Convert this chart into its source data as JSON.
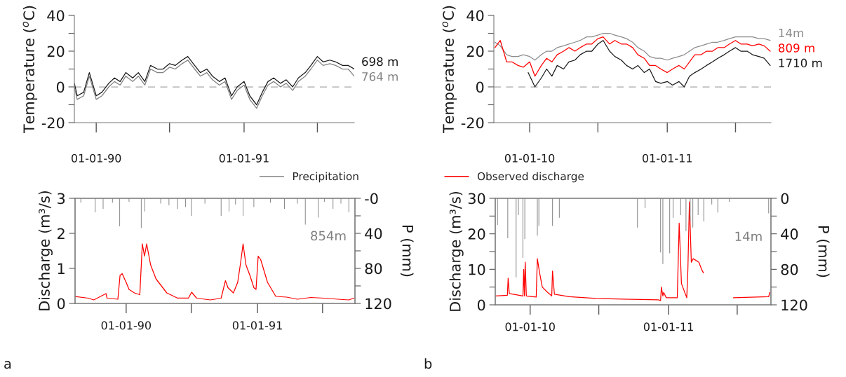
{
  "chart_data": [
    {
      "type": "line",
      "ylabel": "Temperature ($^{o}$C)",
      "legend": false,
      "grid": false,
      "xlim": [
        "1989-11-08",
        "1991-09-30"
      ],
      "xticks": [
        {
          "value": "1990-01-01",
          "label": "01-01-90"
        },
        {
          "value": "1990-07-01",
          "label": null
        },
        {
          "value": "1991-01-01",
          "label": "01-01-91"
        },
        {
          "value": "1991-07-01",
          "label": null
        }
      ],
      "ylim": [
        -20,
        40
      ],
      "yticks": [
        -20,
        {
          "value": -10,
          "label": null
        },
        0,
        {
          "value": 10,
          "label": null
        },
        20,
        {
          "value": 30,
          "label": null
        },
        40
      ],
      "ref_lines": [
        {
          "axis": "y",
          "value": 0,
          "color": "#a6a6a6",
          "line_style": "dashed"
        }
      ],
      "series": [
        {
          "name": "698 m",
          "color": "#1a1a1a",
          "x": [
            "1989-11-08",
            "1989-11-15",
            "1989-12-01",
            "1989-12-15",
            "1990-01-01",
            "1990-01-15",
            "1990-02-01",
            "1990-02-15",
            "1990-03-01",
            "1990-03-15",
            "1990-04-01",
            "1990-04-15",
            "1990-05-01",
            "1990-05-15",
            "1990-06-01",
            "1990-06-15",
            "1990-07-01",
            "1990-07-15",
            "1990-08-01",
            "1990-08-15",
            "1990-09-01",
            "1990-09-15",
            "1990-10-01",
            "1990-10-15",
            "1990-11-01",
            "1990-11-15",
            "1990-12-01",
            "1990-12-15",
            "1991-01-01",
            "1991-01-15",
            "1991-02-01",
            "1991-02-15",
            "1991-03-01",
            "1991-03-15",
            "1991-04-01",
            "1991-04-15",
            "1991-05-01",
            "1991-05-15",
            "1991-06-01",
            "1991-06-15",
            "1991-07-01",
            "1991-07-15",
            "1991-08-01",
            "1991-08-15",
            "1991-09-01",
            "1991-09-15",
            "1991-09-30"
          ],
          "values": [
            2,
            -5,
            -3,
            8,
            -5,
            -3,
            2,
            5,
            3,
            8,
            5,
            8,
            3,
            12,
            10,
            10,
            13,
            12,
            15,
            17,
            12,
            8,
            10,
            6,
            3,
            5,
            -5,
            0,
            3,
            -5,
            -10,
            -3,
            3,
            5,
            2,
            4,
            0,
            5,
            8,
            12,
            17,
            14,
            15,
            14,
            12,
            12,
            10
          ]
        },
        {
          "name": "764 m",
          "color": "#808080",
          "x": [
            "1989-11-08",
            "1989-11-15",
            "1989-12-01",
            "1989-12-15",
            "1990-01-01",
            "1990-01-15",
            "1990-02-01",
            "1990-02-15",
            "1990-03-01",
            "1990-03-15",
            "1990-04-01",
            "1990-04-15",
            "1990-05-01",
            "1990-05-15",
            "1990-06-01",
            "1990-06-15",
            "1990-07-01",
            "1990-07-15",
            "1990-08-01",
            "1990-08-15",
            "1990-09-01",
            "1990-09-15",
            "1990-10-01",
            "1990-10-15",
            "1990-11-01",
            "1990-11-15",
            "1990-12-01",
            "1990-12-15",
            "1991-01-01",
            "1991-01-15",
            "1991-02-01",
            "1991-02-15",
            "1991-03-01",
            "1991-03-15",
            "1991-04-01",
            "1991-04-15",
            "1991-05-01",
            "1991-05-15",
            "1991-06-01",
            "1991-06-15",
            "1991-07-01",
            "1991-07-15",
            "1991-08-01",
            "1991-08-15",
            "1991-09-01",
            "1991-09-15",
            "1991-09-30"
          ],
          "values": [
            0,
            -7,
            -5,
            6,
            -7,
            -5,
            0,
            3,
            1,
            6,
            3,
            6,
            1,
            10,
            8,
            8,
            11,
            10,
            13,
            15,
            10,
            6,
            8,
            4,
            1,
            3,
            -7,
            -2,
            1,
            -7,
            -12,
            -5,
            1,
            3,
            0,
            2,
            -2,
            3,
            6,
            10,
            15,
            12,
            13,
            12,
            10,
            10,
            6
          ]
        }
      ]
    },
    {
      "type": "line",
      "ylabel": "Temperature ($^{o}$C)",
      "legend": false,
      "grid": false,
      "xlim": [
        "2009-09-28",
        "2011-10-03"
      ],
      "xticks": [
        {
          "value": "2010-01-01",
          "label": "01-01-10"
        },
        {
          "value": "2010-07-01",
          "label": null
        },
        {
          "value": "2011-01-01",
          "label": "01-01-11"
        },
        {
          "value": "2011-07-01",
          "label": null
        }
      ],
      "ylim": [
        -20,
        40
      ],
      "yticks": [
        -20,
        {
          "value": -10,
          "label": null
        },
        0,
        {
          "value": 10,
          "label": null
        },
        20,
        {
          "value": 30,
          "label": null
        },
        40
      ],
      "ref_lines": [
        {
          "axis": "y",
          "value": 0,
          "color": "#a6a6a6",
          "line_style": "dashed"
        }
      ],
      "series": [
        {
          "name": "14m",
          "color": "#8c8c8c",
          "x": [
            "2009-10-01",
            "2009-10-15",
            "2009-11-01",
            "2009-11-15",
            "2009-12-01",
            "2009-12-15",
            "2010-01-01",
            "2010-01-15",
            "2010-02-01",
            "2010-02-15",
            "2010-03-01",
            "2010-03-15",
            "2010-04-01",
            "2010-04-15",
            "2010-05-01",
            "2010-05-15",
            "2010-06-01",
            "2010-06-15",
            "2010-07-01",
            "2010-07-15",
            "2010-08-01",
            "2010-08-15",
            "2010-09-01",
            "2010-09-15",
            "2010-10-01",
            "2010-10-15",
            "2010-11-01",
            "2010-11-15",
            "2010-12-01",
            "2010-12-15",
            "2011-01-01",
            "2011-01-15",
            "2011-02-01",
            "2011-02-15",
            "2011-03-01",
            "2011-03-15",
            "2011-04-01",
            "2011-04-15",
            "2011-05-01",
            "2011-05-15",
            "2011-06-01",
            "2011-06-15",
            "2011-07-01",
            "2011-07-15",
            "2011-08-01",
            "2011-08-15",
            "2011-09-01",
            "2011-09-15",
            "2011-10-01"
          ],
          "values": [
            25,
            23,
            18,
            17,
            17,
            18,
            17,
            15,
            18,
            20,
            20,
            22,
            23,
            24,
            25,
            26,
            28,
            28,
            29,
            30,
            30,
            29,
            28,
            27,
            25,
            22,
            20,
            17,
            16,
            16,
            15,
            16,
            17,
            18,
            20,
            22,
            23,
            24,
            25,
            25,
            26,
            27,
            28,
            28,
            28,
            28,
            27,
            27,
            26
          ]
        },
        {
          "name": "809 m",
          "color": "#ff0000",
          "x": [
            "2009-10-01",
            "2009-10-15",
            "2009-11-01",
            "2009-11-15",
            "2009-12-01",
            "2009-12-15",
            "2010-01-01",
            "2010-01-15",
            "2010-02-01",
            "2010-02-15",
            "2010-03-01",
            "2010-03-15",
            "2010-04-01",
            "2010-04-15",
            "2010-05-01",
            "2010-05-15",
            "2010-06-01",
            "2010-06-15",
            "2010-07-01",
            "2010-07-15",
            "2010-08-01",
            "2010-08-15",
            "2010-09-01",
            "2010-09-15",
            "2010-10-01",
            "2010-10-15",
            "2010-11-01",
            "2010-11-15",
            "2010-12-01",
            "2010-12-15",
            "2011-01-01",
            "2011-01-15",
            "2011-02-01",
            "2011-02-15",
            "2011-03-01",
            "2011-03-15",
            "2011-04-01",
            "2011-04-15",
            "2011-05-01",
            "2011-05-15",
            "2011-06-01",
            "2011-06-15",
            "2011-07-01",
            "2011-07-15",
            "2011-08-01",
            "2011-08-15",
            "2011-09-01",
            "2011-09-15",
            "2011-10-01"
          ],
          "values": [
            22,
            26,
            14,
            14,
            12,
            11,
            14,
            6,
            12,
            16,
            14,
            18,
            20,
            22,
            20,
            22,
            24,
            24,
            27,
            28,
            24,
            26,
            24,
            24,
            22,
            18,
            16,
            12,
            12,
            10,
            8,
            10,
            12,
            10,
            14,
            18,
            18,
            20,
            20,
            22,
            22,
            24,
            26,
            24,
            24,
            23,
            24,
            23,
            20
          ]
        },
        {
          "name": "1710 m",
          "color": "#1a1a1a",
          "x": [
            "2009-12-28",
            "2010-01-15",
            "2010-02-01",
            "2010-02-15",
            "2010-03-01",
            "2010-03-15",
            "2010-04-01",
            "2010-04-15",
            "2010-05-01",
            "2010-05-15",
            "2010-06-01",
            "2010-06-15",
            "2010-07-01",
            "2010-07-15",
            "2010-08-01",
            "2010-08-15",
            "2010-09-01",
            "2010-09-15",
            "2010-10-01",
            "2010-10-15",
            "2010-11-01",
            "2010-11-15",
            "2010-12-01",
            "2010-12-15",
            "2011-01-01",
            "2011-01-15",
            "2011-02-01",
            "2011-02-15",
            "2011-03-01",
            "2011-03-15",
            "2011-04-01",
            "2011-04-15",
            "2011-05-01",
            "2011-05-15",
            "2011-06-01",
            "2011-06-15",
            "2011-07-01",
            "2011-07-15",
            "2011-08-01",
            "2011-08-15",
            "2011-09-01",
            "2011-09-15",
            "2011-10-01"
          ],
          "values": [
            8,
            0,
            5,
            10,
            6,
            12,
            10,
            14,
            15,
            18,
            20,
            20,
            24,
            26,
            20,
            17,
            15,
            12,
            10,
            12,
            8,
            10,
            3,
            2,
            3,
            1,
            3,
            0,
            6,
            8,
            10,
            12,
            14,
            16,
            18,
            20,
            22,
            20,
            20,
            18,
            17,
            16,
            12
          ]
        }
      ]
    },
    {
      "type": "line",
      "ylabel": "Discharge (m³/s)",
      "y2label": "P (mm)",
      "legend": "top",
      "grid": false,
      "xlim": [
        "1989-08-12",
        "1991-09-29"
      ],
      "xticks": [
        {
          "value": "1990-01-01",
          "label": "01-01-90"
        },
        {
          "value": "1990-07-01",
          "label": null
        },
        {
          "value": "1991-01-01",
          "label": "01-01-91"
        },
        {
          "value": "1991-07-01",
          "label": null
        }
      ],
      "ylim": [
        0,
        3
      ],
      "yticks": [
        0,
        1,
        2,
        3
      ],
      "y2lim": [
        120,
        0
      ],
      "y2ticks": [
        {
          "value": 0,
          "label": "-0"
        },
        {
          "value": 20,
          "label": null
        },
        40,
        {
          "value": 60,
          "label": null
        },
        80,
        {
          "value": 100,
          "label": null
        },
        120
      ],
      "annotations": [
        "854m",
        "a"
      ],
      "series": [
        {
          "name": "Precipitation",
          "type": "bar",
          "axis": "y2",
          "color": "#8c8c8c",
          "x": [
            "1989-08-28",
            "1989-10-07",
            "1989-10-29",
            "1989-11-24",
            "1989-12-14",
            "1990-01-09",
            "1990-02-12",
            "1990-02-22",
            "1990-04-07",
            "1990-04-30",
            "1990-05-24",
            "1990-06-15",
            "1990-07-01",
            "1990-08-08",
            "1990-09-22",
            "1990-10-14",
            "1990-11-01",
            "1990-11-22",
            "1990-12-22",
            "1991-02-06",
            "1991-03-17",
            "1991-04-22",
            "1991-05-14",
            "1991-06-19",
            "1991-07-06",
            "1991-07-30",
            "1991-08-21",
            "1991-09-12"
          ],
          "values": [
            5,
            16,
            12,
            5,
            32,
            4,
            34,
            15,
            6,
            8,
            12,
            10,
            20,
            6,
            20,
            15,
            7,
            20,
            10,
            5,
            12,
            6,
            30,
            22,
            4,
            12,
            6,
            16
          ]
        },
        {
          "name": "Observed discharge",
          "color": "#ff0000",
          "x": [
            "1989-08-12",
            "1989-09-18",
            "1989-10-03",
            "1989-10-18",
            "1989-11-06",
            "1989-11-09",
            "1989-12-09",
            "1989-12-15",
            "1989-12-21",
            "1990-01-01",
            "1990-01-09",
            "1990-01-24",
            "1990-02-08",
            "1990-02-15",
            "1990-02-21",
            "1990-02-27",
            "1990-03-10",
            "1990-03-25",
            "1990-04-24",
            "1990-05-24",
            "1990-06-23",
            "1990-07-02",
            "1990-07-16",
            "1990-08-23",
            "1990-09-22",
            "1990-10-04",
            "1990-10-11",
            "1990-10-26",
            "1990-11-07",
            "1990-11-15",
            "1990-11-22",
            "1990-11-30",
            "1990-12-11",
            "1990-12-22",
            "1990-12-28",
            "1991-01-03",
            "1991-01-10",
            "1991-01-29",
            "1991-02-21",
            "1991-03-23",
            "1991-04-22",
            "1991-05-29",
            "1991-07-06",
            "1991-08-13",
            "1991-09-12",
            "1991-09-26"
          ],
          "values": [
            0.2,
            0.15,
            0.1,
            0.18,
            0.28,
            0.15,
            0.12,
            0.8,
            0.85,
            0.6,
            0.4,
            0.3,
            0.25,
            1.7,
            1.35,
            1.7,
            1.1,
            0.7,
            0.3,
            0.15,
            0.15,
            0.32,
            0.15,
            0.1,
            0.15,
            0.65,
            0.45,
            0.3,
            0.6,
            1.15,
            1.7,
            1.1,
            0.8,
            0.45,
            0.4,
            1.35,
            1.25,
            0.6,
            0.2,
            0.18,
            0.12,
            0.17,
            0.15,
            0.12,
            0.1,
            0.15
          ]
        }
      ]
    },
    {
      "type": "line",
      "ylabel": "Discharge (m³/s)",
      "y2label": "P (mm)",
      "legend": false,
      "grid": false,
      "xlim": [
        "2009-10-01",
        "2011-09-28"
      ],
      "xticks": [
        {
          "value": "2010-01-01",
          "label": "01-01-10"
        },
        {
          "value": "2010-07-01",
          "label": null
        },
        {
          "value": "2011-01-01",
          "label": "01-01-11"
        },
        {
          "value": "2011-07-01",
          "label": null
        }
      ],
      "ylim": [
        0,
        30
      ],
      "yticks": [
        0,
        {
          "value": 5,
          "label": null
        },
        10,
        {
          "value": 15,
          "label": null
        },
        20,
        {
          "value": 25,
          "label": null
        },
        30
      ],
      "y2lim": [
        120,
        0
      ],
      "y2ticks": [
        0,
        {
          "value": 20,
          "label": null
        },
        40,
        {
          "value": 60,
          "label": null
        },
        80,
        {
          "value": 100,
          "label": null
        },
        120
      ],
      "annotations": [
        "14m",
        "b"
      ],
      "series": [
        {
          "type": "bar",
          "axis": "y2",
          "color": "#8c8c8c",
          "x": [
            "2009-10-07",
            "2009-11-03",
            "2009-11-25",
            "2009-12-01",
            "2009-12-13",
            "2009-12-18",
            "2010-01-20",
            "2010-01-24",
            "2010-03-01",
            "2010-03-19",
            "2010-10-11",
            "2010-10-31",
            "2010-12-11",
            "2010-12-17",
            "2011-01-04",
            "2011-01-13",
            "2011-02-02",
            "2011-02-16",
            "2011-02-27",
            "2011-03-06",
            "2011-03-20",
            "2011-04-04",
            "2011-04-25",
            "2011-05-11",
            "2011-06-10",
            "2011-09-22"
          ],
          "values": [
            30,
            45,
            89,
            19,
            67,
            46,
            42,
            31,
            31,
            22,
            33,
            11,
            61,
            74,
            62,
            22,
            19,
            37,
            26,
            33,
            19,
            26,
            7,
            16,
            4,
            17
          ]
        },
        {
          "color": "#ff0000",
          "x": [
            "2009-10-01",
            "2009-11-02",
            "2009-11-04",
            "2009-11-07",
            "2009-12-13",
            "2009-12-15",
            "2009-12-17",
            "2009-12-19",
            "2009-12-22",
            "2010-01-17",
            "2010-01-20",
            "2010-01-26",
            "2010-02-02",
            "2010-02-16",
            "2010-02-27",
            "2010-03-01",
            "2010-03-06",
            "2010-04-14",
            "2010-06-24",
            "2010-09-03",
            "2010-12-05",
            "2010-12-11",
            "2010-12-13",
            "2010-12-17",
            "2010-12-19",
            "2010-12-26",
            "2011-01-24",
            "2011-01-29",
            "2011-02-04",
            "2011-02-11",
            "2011-02-18",
            "2011-02-21",
            "2011-02-25",
            "2011-03-02",
            "2011-03-07",
            "2011-03-22",
            "2011-03-29",
            "2011-04-03",
            "2011-05-01",
            "2011-06-21",
            "2011-09-22",
            "2011-09-25"
          ],
          "values": [
            2.5,
            2.7,
            7.5,
            3.2,
            2.5,
            10,
            2.5,
            12,
            2.5,
            2.2,
            13,
            9,
            5,
            3.5,
            2.5,
            9.5,
            3,
            2.3,
            1.8,
            1.6,
            1.4,
            1.2,
            5,
            2.5,
            3.5,
            2,
            2,
            23,
            6,
            4,
            2,
            10,
            29,
            12,
            13,
            12,
            10,
            9,
            null,
            2,
            2.3,
            3.5
          ]
        }
      ]
    }
  ]
}
